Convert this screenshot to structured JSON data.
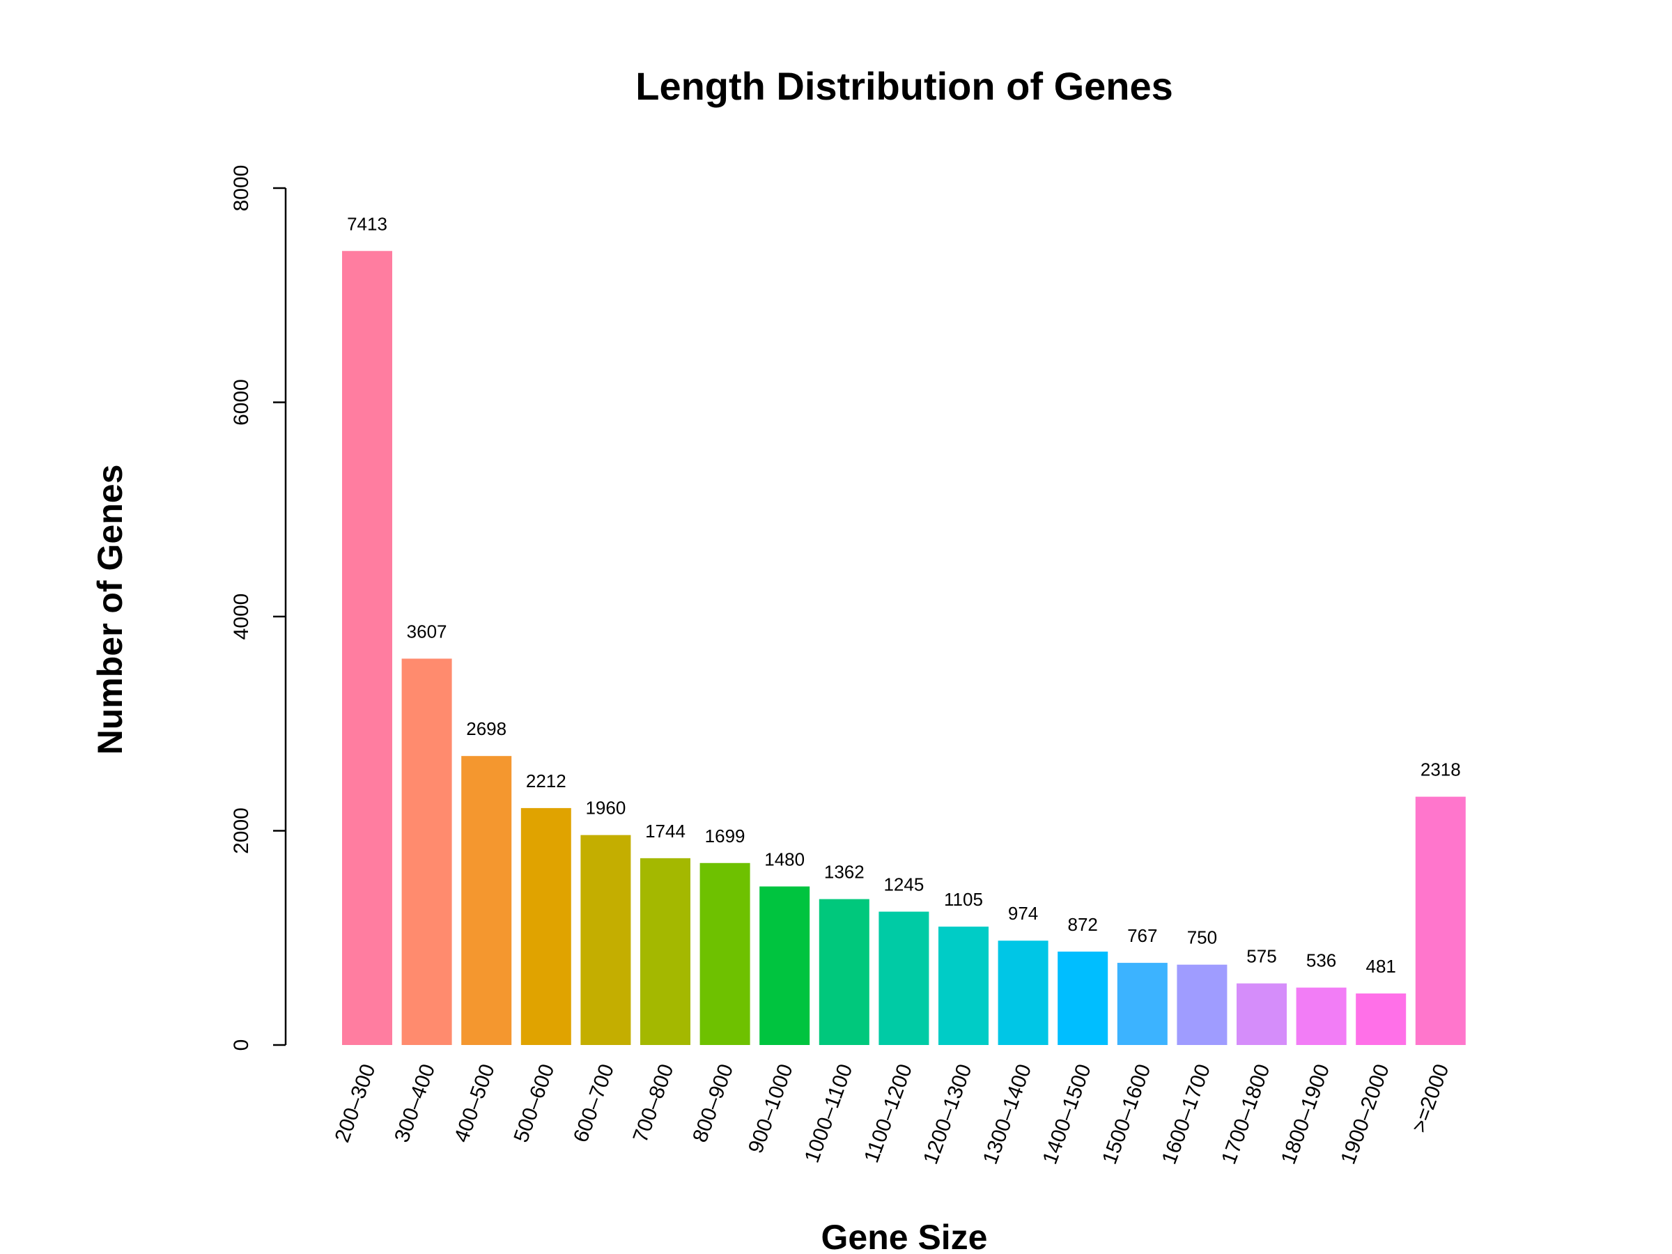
{
  "chart_data": {
    "type": "bar",
    "title": "Length Distribution of Genes",
    "xlabel": "Gene Size",
    "ylabel": "Number of Genes",
    "ylim": [
      0,
      8000
    ],
    "yticks": [
      "0",
      "2000",
      "4000",
      "6000",
      "8000"
    ],
    "grid": false,
    "legend": "none",
    "categories": [
      "200–300",
      "300–400",
      "400–500",
      "500–600",
      "600–700",
      "700–800",
      "800–900",
      "900–1000",
      "1000–1100",
      "1100–1200",
      "1200–1300",
      "1300–1400",
      "1400–1500",
      "1500–1600",
      "1600–1700",
      "1700–1800",
      "1800–1900",
      "1900–2000",
      ">=2000"
    ],
    "values": [
      7413,
      3607,
      2698,
      2212,
      1960,
      1744,
      1699,
      1480,
      1362,
      1245,
      1105,
      974,
      872,
      767,
      750,
      575,
      536,
      481,
      2318
    ],
    "colors": [
      "#FF7DA0",
      "#FF8B6E",
      "#F4972F",
      "#E0A300",
      "#C4AE00",
      "#A4B800",
      "#6EC100",
      "#00C43F",
      "#00C87C",
      "#00CBA5",
      "#00CCC6",
      "#00C6E6",
      "#00BEFF",
      "#3CB3FF",
      "#9F9CFF",
      "#D58DFA",
      "#F27DF6",
      "#FF70E8",
      "#FF76CC"
    ]
  }
}
